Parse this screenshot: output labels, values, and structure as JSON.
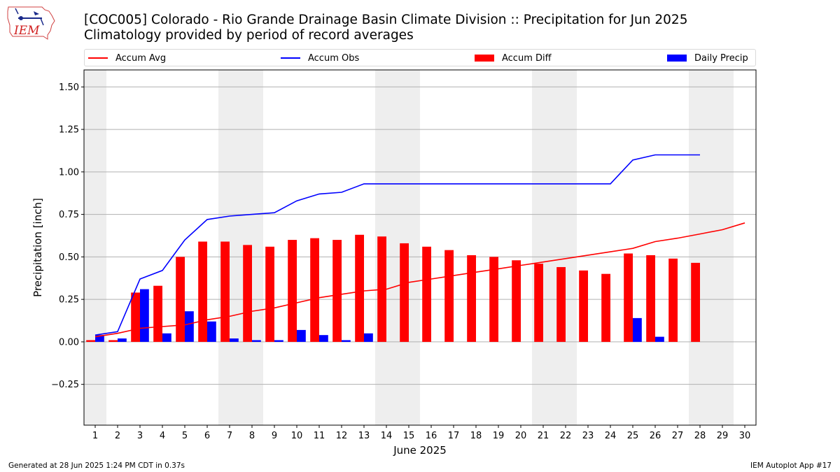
{
  "logo_text": "IEM",
  "footer": {
    "generated": "Generated at 28 Jun 2025 1:24 PM CDT in 0.37s",
    "app": "IEM Autoplot App #17"
  },
  "chart_data": {
    "type": "bar",
    "title": "[COC005] Colorado - Rio Grande Drainage Basin Climate Division :: Precipitation for Jun 2025",
    "subtitle": "Climatology provided by period of record averages",
    "xlabel": "June 2025",
    "ylabel": "Precipitation [inch]",
    "ylim": [
      -0.49,
      1.6
    ],
    "yticks": [
      -0.25,
      0.0,
      0.25,
      0.5,
      0.75,
      1.0,
      1.25,
      1.5
    ],
    "ytick_labels": [
      "−0.25",
      "0.00",
      "0.25",
      "0.50",
      "0.75",
      "1.00",
      "1.25",
      "1.50"
    ],
    "xlim": [
      0.5,
      30.5
    ],
    "x": [
      1,
      2,
      3,
      4,
      5,
      6,
      7,
      8,
      9,
      10,
      11,
      12,
      13,
      14,
      15,
      16,
      17,
      18,
      19,
      20,
      21,
      22,
      23,
      24,
      25,
      26,
      27,
      28,
      29,
      30
    ],
    "xtick_labels": [
      "1",
      "2",
      "3",
      "4",
      "5",
      "6",
      "7",
      "8",
      "9",
      "10",
      "11",
      "12",
      "13",
      "14",
      "15",
      "16",
      "17",
      "18",
      "19",
      "20",
      "21",
      "22",
      "23",
      "24",
      "25",
      "26",
      "27",
      "28",
      "29",
      "30"
    ],
    "weekend_shading": [
      [
        0.5,
        1.5
      ],
      [
        6.5,
        8.5
      ],
      [
        13.5,
        15.5
      ],
      [
        20.5,
        22.5
      ],
      [
        27.5,
        29.5
      ]
    ],
    "grid": "horizontal",
    "legend_placement": "top",
    "series": [
      {
        "name": "Accum Avg",
        "kind": "line",
        "color": "#ff0000",
        "values": [
          0.03,
          0.05,
          0.08,
          0.09,
          0.1,
          0.13,
          0.15,
          0.18,
          0.2,
          0.23,
          0.26,
          0.28,
          0.3,
          0.31,
          0.35,
          0.37,
          0.39,
          0.41,
          0.43,
          0.45,
          0.47,
          0.49,
          0.51,
          0.53,
          0.55,
          0.59,
          0.61,
          0.635,
          0.66,
          0.7
        ]
      },
      {
        "name": "Accum Obs",
        "kind": "line",
        "color": "#0000ff",
        "values": [
          0.04,
          0.06,
          0.37,
          0.42,
          0.6,
          0.72,
          0.74,
          0.75,
          0.76,
          0.83,
          0.87,
          0.88,
          0.93,
          0.93,
          0.93,
          0.93,
          0.93,
          0.93,
          0.93,
          0.93,
          0.93,
          0.93,
          0.93,
          0.93,
          1.07,
          1.1,
          1.1,
          1.1,
          null,
          null
        ]
      },
      {
        "name": "Accum Diff",
        "kind": "bar",
        "color": "#ff0000",
        "values": [
          0.01,
          0.01,
          0.29,
          0.33,
          0.5,
          0.59,
          0.59,
          0.57,
          0.56,
          0.6,
          0.61,
          0.6,
          0.63,
          0.62,
          0.58,
          0.56,
          0.54,
          0.51,
          0.5,
          0.48,
          0.46,
          0.44,
          0.42,
          0.4,
          0.52,
          0.51,
          0.49,
          0.465,
          null,
          null
        ]
      },
      {
        "name": "Daily Precip",
        "kind": "bar",
        "color": "#0000ff",
        "values": [
          0.04,
          0.02,
          0.31,
          0.05,
          0.18,
          0.12,
          0.02,
          0.01,
          0.01,
          0.07,
          0.04,
          0.01,
          0.05,
          0.0,
          0.0,
          0.0,
          0.0,
          0.0,
          0.0,
          0.0,
          0.0,
          0.0,
          0.0,
          0.0,
          0.14,
          0.03,
          0.0,
          0.0,
          null,
          null
        ]
      }
    ]
  }
}
